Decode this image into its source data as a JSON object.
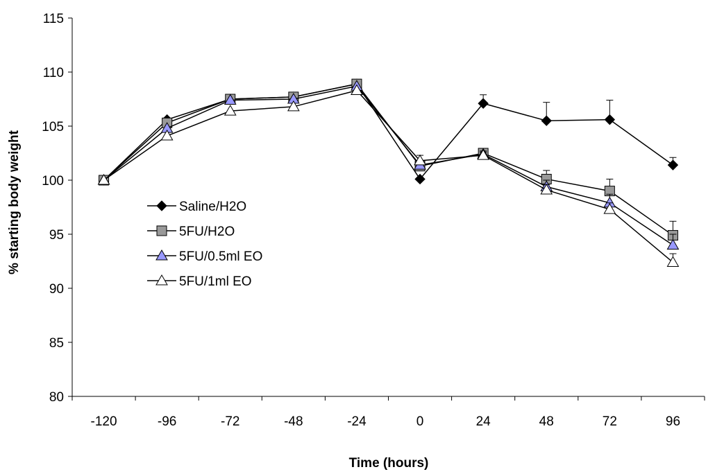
{
  "chart_data": {
    "type": "line",
    "xlabel": "Time (hours)",
    "ylabel": "% starting body weight",
    "x": [
      -120,
      -96,
      -72,
      -48,
      -24,
      0,
      24,
      48,
      72,
      96
    ],
    "ylim": [
      80,
      115
    ],
    "yticks": [
      80,
      85,
      90,
      95,
      100,
      105,
      110,
      115
    ],
    "grid": false,
    "legend_position": "left-middle",
    "series": [
      {
        "name": "Saline/H2O",
        "marker": "diamond",
        "fill": "#000000",
        "values": [
          100.0,
          105.6,
          107.5,
          107.7,
          108.9,
          100.1,
          107.1,
          105.5,
          105.6,
          101.4
        ],
        "error_up": [
          0,
          0,
          0,
          0,
          0,
          0,
          0.8,
          1.7,
          1.8,
          0.7
        ]
      },
      {
        "name": "5FU/H2O",
        "marker": "square",
        "fill": "#999999",
        "values": [
          100.0,
          105.3,
          107.5,
          107.7,
          108.9,
          101.3,
          102.5,
          100.1,
          99.0,
          94.9
        ],
        "error_up": [
          0,
          0,
          0,
          0,
          0,
          0,
          0.4,
          0.8,
          1.1,
          1.3
        ]
      },
      {
        "name": "5FU/0.5ml EO",
        "marker": "triangle",
        "fill": "#9999ff",
        "values": [
          100.0,
          104.8,
          107.4,
          107.5,
          108.7,
          101.4,
          102.4,
          99.4,
          97.9,
          94.0
        ],
        "error_up": [
          0,
          0,
          0,
          0,
          0,
          0,
          0.3,
          0.6,
          0.8,
          1.0
        ]
      },
      {
        "name": "5FU/1ml EO",
        "marker": "triangle",
        "fill": "#ffffff",
        "values": [
          100.0,
          104.1,
          106.4,
          106.8,
          108.3,
          101.8,
          102.3,
          99.1,
          97.3,
          92.4
        ],
        "error_up": [
          0,
          0,
          0,
          0,
          0,
          0.5,
          0.3,
          0.5,
          0.6,
          0.8
        ]
      }
    ]
  }
}
